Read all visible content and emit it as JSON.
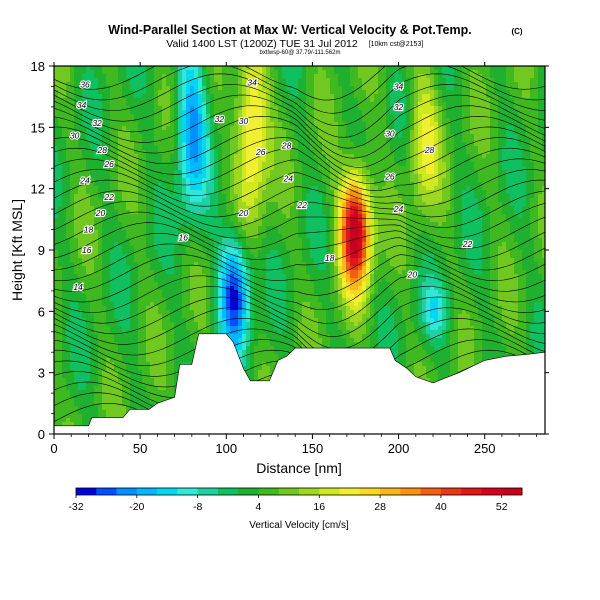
{
  "chart_data": {
    "type": "heatmap",
    "title": "Wind-Parallel Section at Max W: Vertical Velocity & Pot.Temp.",
    "title_mark": "(C)",
    "subtitle": "Valid 1400 LST (1200Z) TUE 31 Jul 2012",
    "subtitle_extra": "[10km cst@2153]",
    "info_line": "bxtlwsp-60@ 37.79/-111.562m",
    "xlabel": "Distance [nm]",
    "ylabel": "Height [Kft MSL]",
    "xlim": [
      0,
      285
    ],
    "ylim": [
      0,
      18
    ],
    "xticks": [
      "0",
      "50",
      "100",
      "150",
      "200",
      "250"
    ],
    "yticks": [
      "0",
      "3",
      "6",
      "9",
      "12",
      "15",
      "18"
    ],
    "grid": false,
    "colorbar": {
      "label": "Vertical Velocity [cm/s]",
      "tick_labels": [
        "-32",
        "-20",
        "-8",
        "4",
        "16",
        "28",
        "40",
        "52"
      ],
      "levels": [
        -32,
        -28,
        -24,
        -20,
        -16,
        -12,
        -8,
        -4,
        0,
        4,
        8,
        12,
        16,
        20,
        24,
        28,
        32,
        36,
        40,
        44,
        48,
        52,
        56
      ],
      "colors": [
        "#0000d8",
        "#0050ff",
        "#0090ff",
        "#00b8ff",
        "#00d8f0",
        "#30e8d8",
        "#20d0a0",
        "#10c060",
        "#20b030",
        "#40b820",
        "#70c820",
        "#a0d820",
        "#d0e820",
        "#f0f030",
        "#f8d820",
        "#f8b818",
        "#f89010",
        "#f06010",
        "#e83818",
        "#e01818",
        "#d80020",
        "#c80020"
      ]
    },
    "vertical_velocity_features": [
      {
        "x": 80,
        "height_range": [
          12,
          18
        ],
        "value": -20
      },
      {
        "x": 105,
        "height_range": [
          5,
          9
        ],
        "value": -28
      },
      {
        "x": 115,
        "height_range": [
          12,
          18
        ],
        "value": 30
      },
      {
        "x": 175,
        "height_range": [
          8,
          12
        ],
        "value": 56
      },
      {
        "x": 222,
        "height_range": [
          5,
          7
        ],
        "value": -8
      },
      {
        "x": 215,
        "height_range": [
          12,
          17
        ],
        "value": 20
      }
    ],
    "contour_labels": [
      "36",
      "34",
      "32",
      "30",
      "28",
      "26",
      "24",
      "22",
      "20",
      "18",
      "16",
      "14",
      "34",
      "32",
      "30",
      "28",
      "26",
      "24",
      "22",
      "20",
      "18",
      "16",
      "34",
      "32",
      "30",
      "28",
      "26",
      "24",
      "22",
      "20"
    ]
  }
}
